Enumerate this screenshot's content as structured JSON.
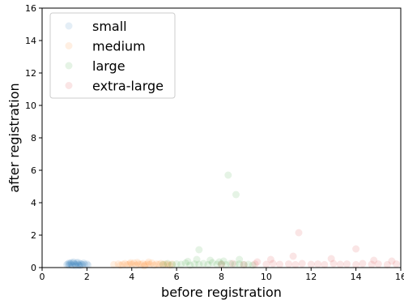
{
  "chart_data": {
    "type": "scatter",
    "title": "",
    "xlabel": "before registration",
    "ylabel": "after registration",
    "xlim": [
      0,
      16
    ],
    "ylim": [
      0,
      16
    ],
    "xticks": [
      "0",
      "2",
      "4",
      "6",
      "8",
      "10",
      "12",
      "14",
      "16"
    ],
    "yticks": [
      "0",
      "2",
      "4",
      "6",
      "8",
      "10",
      "12",
      "14",
      "16"
    ],
    "grid": false,
    "legend_position": "top-left",
    "point_alpha": 0.12,
    "series": [
      {
        "name": "small",
        "color": "#1f77b4",
        "points": [
          [
            1.1,
            0.18
          ],
          [
            1.15,
            0.22
          ],
          [
            1.2,
            0.15
          ],
          [
            1.25,
            0.25
          ],
          [
            1.3,
            0.2
          ],
          [
            1.35,
            0.12
          ],
          [
            1.4,
            0.28
          ],
          [
            1.45,
            0.22
          ],
          [
            1.5,
            0.18
          ],
          [
            1.55,
            0.3
          ],
          [
            1.6,
            0.2
          ],
          [
            1.65,
            0.15
          ],
          [
            1.7,
            0.25
          ],
          [
            1.75,
            0.22
          ],
          [
            1.8,
            0.18
          ],
          [
            1.85,
            0.28
          ],
          [
            1.9,
            0.2
          ],
          [
            2.0,
            0.22
          ],
          [
            2.05,
            0.15
          ],
          [
            1.4,
            0.35
          ],
          [
            1.5,
            0.1
          ],
          [
            1.6,
            0.32
          ],
          [
            1.3,
            0.3
          ],
          [
            1.2,
            0.28
          ],
          [
            1.7,
            0.12
          ]
        ]
      },
      {
        "name": "medium",
        "color": "#ff7f0e",
        "points": [
          [
            3.2,
            0.18
          ],
          [
            3.4,
            0.22
          ],
          [
            3.5,
            0.15
          ],
          [
            3.6,
            0.2
          ],
          [
            3.7,
            0.25
          ],
          [
            3.8,
            0.18
          ],
          [
            3.9,
            0.22
          ],
          [
            4.0,
            0.2
          ],
          [
            4.1,
            0.28
          ],
          [
            4.2,
            0.15
          ],
          [
            4.3,
            0.22
          ],
          [
            4.4,
            0.2
          ],
          [
            4.5,
            0.25
          ],
          [
            4.6,
            0.18
          ],
          [
            4.7,
            0.22
          ],
          [
            4.8,
            0.2
          ],
          [
            4.9,
            0.28
          ],
          [
            5.0,
            0.15
          ],
          [
            5.1,
            0.22
          ],
          [
            5.2,
            0.2
          ],
          [
            5.3,
            0.25
          ],
          [
            5.4,
            0.18
          ],
          [
            5.5,
            0.22
          ],
          [
            5.6,
            0.2
          ],
          [
            5.7,
            0.15
          ],
          [
            5.8,
            0.22
          ],
          [
            4.25,
            0.32
          ],
          [
            4.55,
            0.1
          ],
          [
            3.95,
            0.3
          ],
          [
            4.75,
            0.34
          ]
        ]
      },
      {
        "name": "large",
        "color": "#2ca02c",
        "points": [
          [
            5.4,
            0.2
          ],
          [
            5.6,
            0.25
          ],
          [
            5.8,
            0.18
          ],
          [
            6.0,
            0.22
          ],
          [
            6.2,
            0.2
          ],
          [
            6.4,
            0.28
          ],
          [
            6.6,
            0.15
          ],
          [
            6.8,
            0.22
          ],
          [
            7.0,
            0.2
          ],
          [
            7.2,
            0.25
          ],
          [
            7.4,
            0.18
          ],
          [
            7.6,
            0.3
          ],
          [
            7.8,
            0.2
          ],
          [
            8.0,
            0.22
          ],
          [
            8.2,
            0.18
          ],
          [
            8.4,
            0.25
          ],
          [
            8.6,
            0.2
          ],
          [
            8.8,
            0.22
          ],
          [
            9.0,
            0.18
          ],
          [
            9.2,
            0.2
          ],
          [
            9.4,
            0.15
          ],
          [
            8.3,
            5.7
          ],
          [
            8.65,
            4.5
          ],
          [
            7.0,
            1.1
          ],
          [
            6.9,
            0.5
          ],
          [
            7.5,
            0.45
          ],
          [
            8.1,
            0.4
          ],
          [
            6.5,
            0.38
          ],
          [
            7.9,
            0.35
          ],
          [
            8.8,
            0.5
          ]
        ]
      },
      {
        "name": "extra-large",
        "color": "#d62728",
        "points": [
          [
            8.0,
            0.2
          ],
          [
            8.5,
            0.25
          ],
          [
            9.0,
            0.18
          ],
          [
            9.5,
            0.22
          ],
          [
            10.0,
            0.2
          ],
          [
            10.3,
            0.25
          ],
          [
            10.6,
            0.2
          ],
          [
            11.0,
            0.22
          ],
          [
            11.3,
            0.18
          ],
          [
            11.6,
            0.25
          ],
          [
            12.0,
            0.2
          ],
          [
            12.3,
            0.22
          ],
          [
            12.6,
            0.18
          ],
          [
            13.0,
            0.25
          ],
          [
            13.3,
            0.2
          ],
          [
            13.6,
            0.22
          ],
          [
            14.0,
            0.18
          ],
          [
            14.3,
            0.25
          ],
          [
            14.7,
            0.2
          ],
          [
            15.0,
            0.22
          ],
          [
            15.4,
            0.18
          ],
          [
            15.8,
            0.22
          ],
          [
            11.45,
            2.15
          ],
          [
            14.0,
            1.15
          ],
          [
            11.2,
            0.7
          ],
          [
            12.9,
            0.55
          ],
          [
            10.2,
            0.5
          ],
          [
            14.8,
            0.45
          ],
          [
            15.6,
            0.4
          ],
          [
            9.6,
            0.35
          ]
        ]
      }
    ]
  }
}
